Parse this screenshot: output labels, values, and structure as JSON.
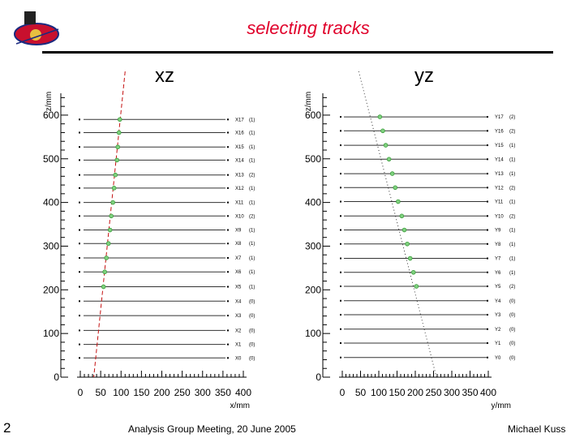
{
  "slide": {
    "title": "selecting tracks",
    "page_number": "2",
    "footer_center": "Analysis Group Meeting, 20 June 2005",
    "footer_right": "Michael Kuss",
    "accent_color": "#e0002a",
    "logo_icon": "glast-mission-logo"
  },
  "chart_data": [
    {
      "type": "scatter",
      "title": "xz",
      "xlabel": "x/mm",
      "ylabel": "z/mm",
      "xlim": [
        0,
        400
      ],
      "ylim": [
        0,
        650
      ],
      "x_ticks": [
        "0",
        "50",
        "100",
        "150",
        "200",
        "250",
        "300",
        "350",
        "400"
      ],
      "y_ticks": [
        "0",
        "100",
        "200",
        "300",
        "400",
        "500",
        "600"
      ],
      "grid": false,
      "layers": [
        {
          "z": 590,
          "label": "X17",
          "count": "(1)"
        },
        {
          "z": 560,
          "label": "X16",
          "count": "(1)"
        },
        {
          "z": 527,
          "label": "X15",
          "count": "(1)"
        },
        {
          "z": 497,
          "label": "X14",
          "count": "(1)"
        },
        {
          "z": 463,
          "label": "X13",
          "count": "(2)"
        },
        {
          "z": 433,
          "label": "X12",
          "count": "(1)"
        },
        {
          "z": 400,
          "label": "X11",
          "count": "(1)"
        },
        {
          "z": 369,
          "label": "X10",
          "count": "(2)"
        },
        {
          "z": 337,
          "label": "X9",
          "count": "(1)"
        },
        {
          "z": 306,
          "label": "X8",
          "count": "(1)"
        },
        {
          "z": 273,
          "label": "X7",
          "count": "(1)"
        },
        {
          "z": 241,
          "label": "X6",
          "count": "(1)"
        },
        {
          "z": 207,
          "label": "X5",
          "count": "(1)"
        },
        {
          "z": 174,
          "label": "X4",
          "count": "(0)"
        },
        {
          "z": 141,
          "label": "X3",
          "count": "(0)"
        },
        {
          "z": 107,
          "label": "X2",
          "count": "(0)"
        },
        {
          "z": 75,
          "label": "X1",
          "count": "(0)"
        },
        {
          "z": 44,
          "label": "X0",
          "count": "(0)"
        }
      ],
      "hits": [
        {
          "x": 97,
          "z": 590
        },
        {
          "x": 95,
          "z": 560
        },
        {
          "x": 92,
          "z": 527
        },
        {
          "x": 90,
          "z": 497
        },
        {
          "x": 86,
          "z": 463
        },
        {
          "x": 83,
          "z": 433
        },
        {
          "x": 80,
          "z": 400
        },
        {
          "x": 76,
          "z": 369
        },
        {
          "x": 73,
          "z": 337
        },
        {
          "x": 69,
          "z": 306
        },
        {
          "x": 64,
          "z": 273
        },
        {
          "x": 60,
          "z": 241
        },
        {
          "x": 57,
          "z": 207
        }
      ],
      "track": [
        {
          "x": 110,
          "z": 700
        },
        {
          "x": 33,
          "z": 0
        }
      ]
    },
    {
      "type": "scatter",
      "title": "yz",
      "xlabel": "y/mm",
      "ylabel": "z/mm",
      "xlim": [
        0,
        400
      ],
      "ylim": [
        0,
        650
      ],
      "x_ticks": [
        "0",
        "50",
        "100",
        "150",
        "200",
        "250",
        "300",
        "350",
        "400"
      ],
      "y_ticks": [
        "0",
        "100",
        "200",
        "300",
        "400",
        "500",
        "600"
      ],
      "grid": false,
      "layers": [
        {
          "z": 596,
          "label": "Y17",
          "count": "(2)"
        },
        {
          "z": 564,
          "label": "Y16",
          "count": "(2)"
        },
        {
          "z": 531,
          "label": "Y15",
          "count": "(1)"
        },
        {
          "z": 499,
          "label": "Y14",
          "count": "(1)"
        },
        {
          "z": 466,
          "label": "Y13",
          "count": "(1)"
        },
        {
          "z": 434,
          "label": "Y12",
          "count": "(2)"
        },
        {
          "z": 402,
          "label": "Y11",
          "count": "(1)"
        },
        {
          "z": 369,
          "label": "Y10",
          "count": "(2)"
        },
        {
          "z": 337,
          "label": "Y9",
          "count": "(1)"
        },
        {
          "z": 305,
          "label": "Y8",
          "count": "(1)"
        },
        {
          "z": 272,
          "label": "Y7",
          "count": "(1)"
        },
        {
          "z": 240,
          "label": "Y6",
          "count": "(1)"
        },
        {
          "z": 208,
          "label": "Y5",
          "count": "(2)"
        },
        {
          "z": 175,
          "label": "Y4",
          "count": "(0)"
        },
        {
          "z": 143,
          "label": "Y3",
          "count": "(0)"
        },
        {
          "z": 110,
          "label": "Y2",
          "count": "(0)"
        },
        {
          "z": 78,
          "label": "Y1",
          "count": "(0)"
        },
        {
          "z": 45,
          "label": "Y0",
          "count": "(0)"
        }
      ],
      "hits": [
        {
          "y": 103,
          "z": 596
        },
        {
          "y": 111,
          "z": 564
        },
        {
          "y": 119,
          "z": 531
        },
        {
          "y": 128,
          "z": 499
        },
        {
          "y": 137,
          "z": 466
        },
        {
          "y": 145,
          "z": 434
        },
        {
          "y": 153,
          "z": 402
        },
        {
          "y": 163,
          "z": 369
        },
        {
          "y": 170,
          "z": 337
        },
        {
          "y": 178,
          "z": 305
        },
        {
          "y": 186,
          "z": 272
        },
        {
          "y": 195,
          "z": 240
        },
        {
          "y": 203,
          "z": 208
        }
      ],
      "track": [
        {
          "y": 45,
          "z": 700
        },
        {
          "y": 258,
          "z": 0
        }
      ]
    }
  ]
}
